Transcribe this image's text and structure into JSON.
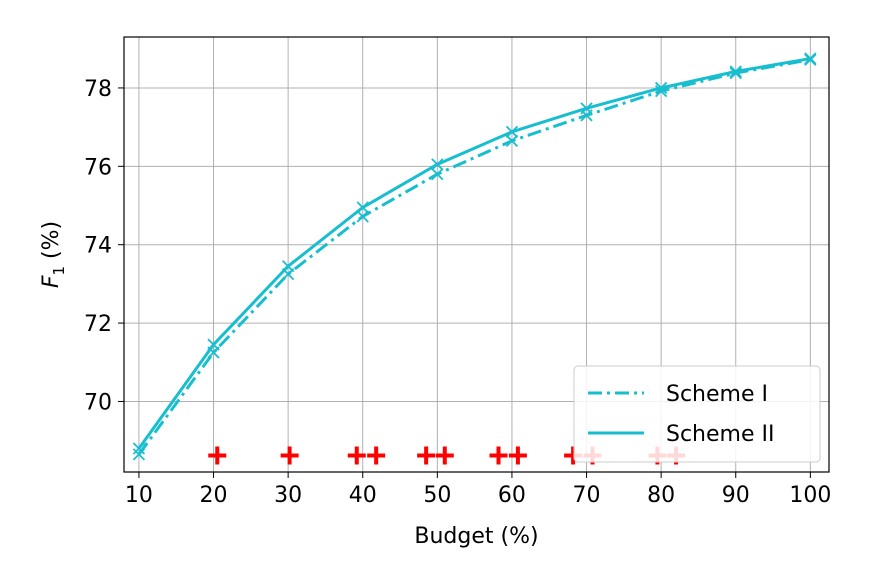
{
  "chart_data": {
    "type": "line",
    "x": [
      10,
      20,
      30,
      40,
      50,
      60,
      70,
      80,
      90,
      100
    ],
    "xlabel": "Budget (%)",
    "ylabel_main": "F",
    "ylabel_sub": "1",
    "ylabel_unit": " (%)",
    "xlim": [
      8,
      102.5
    ],
    "ylim": [
      68.2,
      79.3
    ],
    "xticks": [
      10,
      20,
      30,
      40,
      50,
      60,
      70,
      80,
      90,
      100
    ],
    "yticks": [
      70,
      72,
      74,
      76,
      78
    ],
    "grid": true,
    "legend_position": "lower-right",
    "series": [
      {
        "name": "Scheme I",
        "style": "dashdot",
        "color": "#17becf",
        "values": [
          68.65,
          71.25,
          73.25,
          74.72,
          75.8,
          76.65,
          77.3,
          77.92,
          78.38,
          78.72
        ]
      },
      {
        "name": "Scheme II",
        "style": "solid",
        "color": "#17becf",
        "values": [
          68.8,
          71.45,
          73.45,
          74.95,
          76.05,
          76.88,
          77.48,
          78.0,
          78.42,
          78.75
        ]
      }
    ],
    "red_markers": {
      "color": "#ff0000",
      "y": 68.62,
      "x": [
        20.5,
        30.2,
        39.2,
        41.8,
        48.5,
        51.0,
        58.2,
        60.8,
        68.2,
        70.8,
        79.5,
        82.0
      ]
    }
  }
}
